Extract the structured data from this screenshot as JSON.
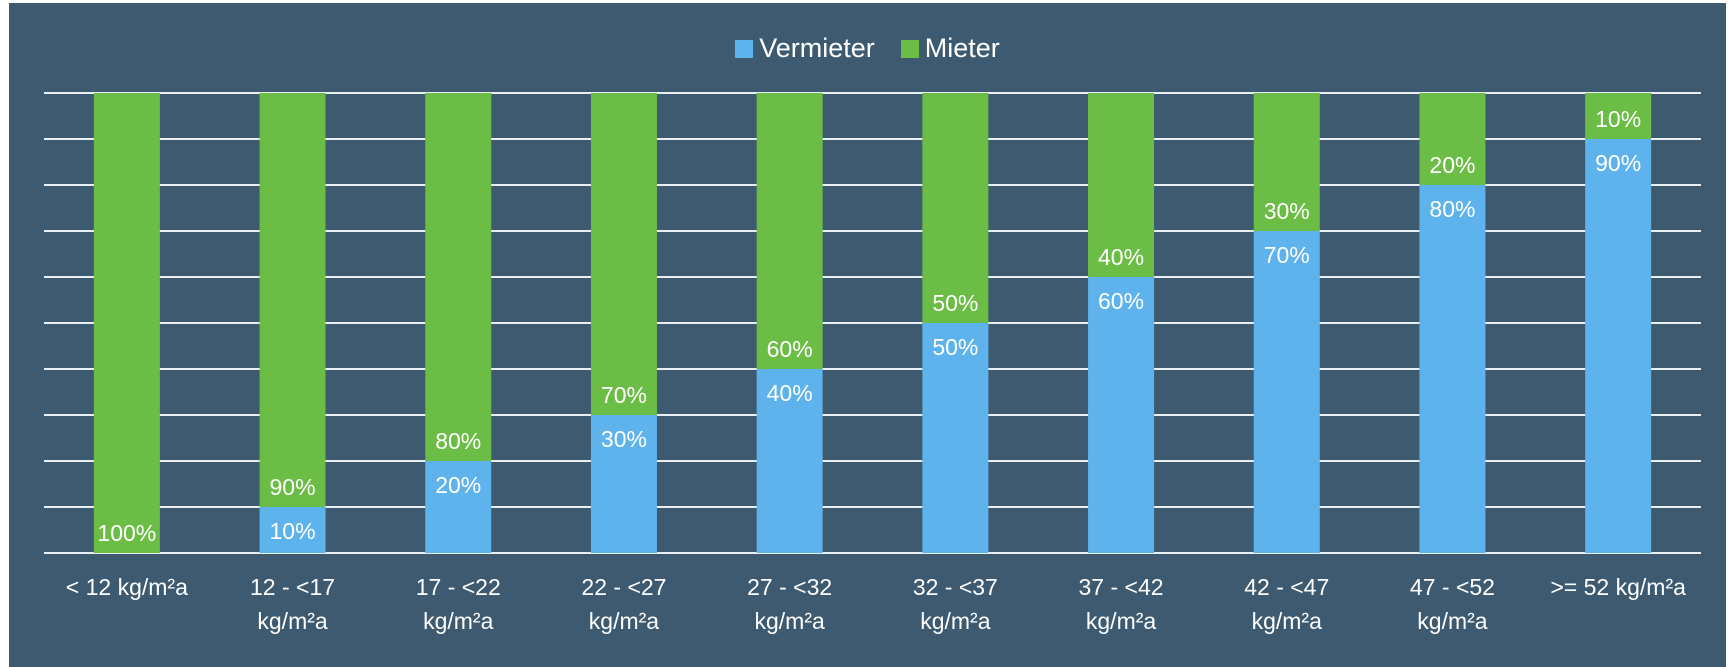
{
  "chart_data": {
    "type": "bar",
    "stacked": true,
    "legend_position": "top",
    "grid": true,
    "ylim": [
      0,
      100
    ],
    "categories": [
      [
        "< 12 kg/m²a"
      ],
      [
        "12 - <17",
        "kg/m²a"
      ],
      [
        "17 - <22",
        "kg/m²a"
      ],
      [
        "22 - <27",
        "kg/m²a"
      ],
      [
        "27 - <32",
        "kg/m²a"
      ],
      [
        "32 - <37",
        "kg/m²a"
      ],
      [
        "37 - <42",
        "kg/m²a"
      ],
      [
        "42 - <47",
        "kg/m²a"
      ],
      [
        "47 - <52",
        "kg/m²a"
      ],
      [
        ">= 52 kg/m²a"
      ]
    ],
    "series": [
      {
        "name": "Vermieter",
        "color": "#5fb3ec",
        "values": [
          0,
          10,
          20,
          30,
          40,
          50,
          60,
          70,
          80,
          90
        ]
      },
      {
        "name": "Mieter",
        "color": "#6cbd45",
        "values": [
          100,
          90,
          80,
          70,
          60,
          50,
          40,
          30,
          20,
          10
        ]
      }
    ],
    "data_labels": {
      "Vermieter": [
        "",
        "10%",
        "20%",
        "30%",
        "40%",
        "50%",
        "60%",
        "70%",
        "80%",
        "90%"
      ],
      "Mieter": [
        "100%",
        "90%",
        "80%",
        "70%",
        "60%",
        "50%",
        "40%",
        "30%",
        "20%",
        "10%"
      ]
    },
    "colors": {
      "background": "#3d5a70",
      "gridline": "#e8eef2",
      "text": "#ffffff"
    }
  }
}
